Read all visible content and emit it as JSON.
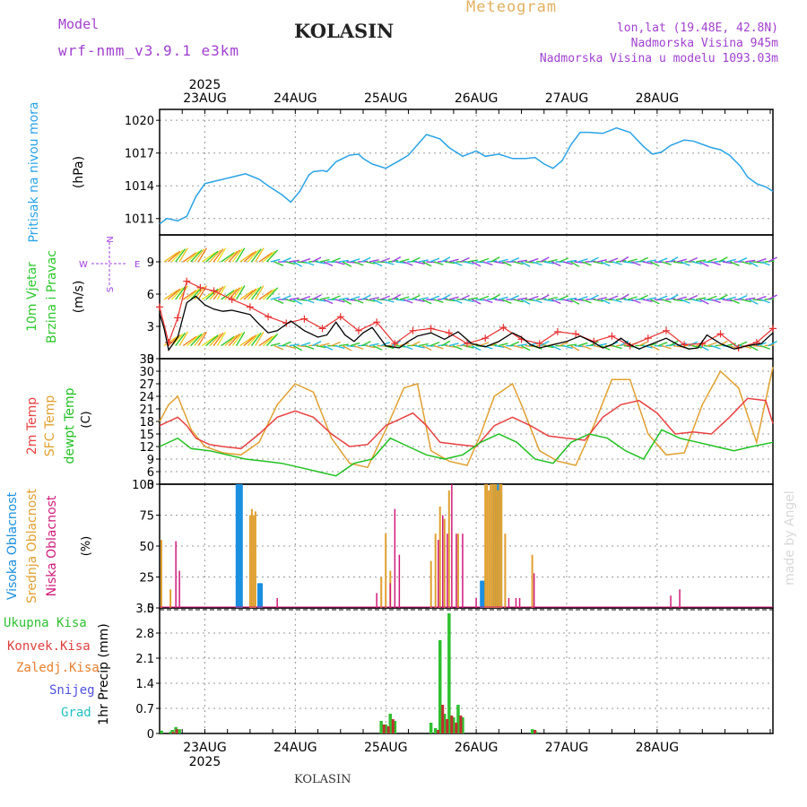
{
  "header": {
    "model_label": "Model",
    "model_name": "wrf-nmm_v3.9.1 e3km",
    "station": "KOLASIN",
    "product": "Meteogram",
    "lonlat": "lon,lat (19.48E, 42.8N)",
    "elevation": "Nadmorska Visina 945m",
    "model_elevation": "Nadmorska Visina u modelu 1093.03m",
    "year": "2025",
    "footer_station": "KOLASIN",
    "watermark": "made by Angel"
  },
  "colors": {
    "pressure": "#29a3e6",
    "wind_green": "#2ec82e",
    "wind_purple": "#a040e0",
    "temp2m": "#e84040",
    "sfc": "#e0a030",
    "dewpt": "#20c020",
    "high": "#1b8fe0",
    "mid": "#e0a030",
    "low": "#d01a7a",
    "precip_total": "#30c030",
    "precip_conv": "#c03030",
    "precip_frozen": "#e88030",
    "snow": "#5050e0",
    "hail": "#20c0c0",
    "title": "#222222",
    "meteogram": "#e0b060",
    "info": "#a040d0"
  },
  "chart_data": [
    {
      "type": "line",
      "panel": "pressure",
      "ylabel": "(hPa)",
      "side_label": "Pritisak na nivou mora",
      "ylim": [
        1009.5,
        1021
      ],
      "yticks": [
        1011,
        1014,
        1017,
        1020
      ],
      "series": [
        {
          "name": "Pritisak na nivou mora",
          "x": [
            0,
            0.08,
            0.2,
            0.3,
            0.4,
            0.5,
            0.65,
            0.8,
            0.95,
            1.1,
            1.2,
            1.35,
            1.45,
            1.55,
            1.65,
            1.7,
            1.8,
            1.85,
            1.95,
            2.1,
            2.2,
            2.25,
            2.35,
            2.5,
            2.65,
            2.75,
            2.95,
            3.1,
            3.2,
            3.35,
            3.5,
            3.6,
            3.75,
            3.9,
            4.05,
            4.15,
            4.25,
            4.35,
            4.45,
            4.55,
            4.65,
            4.75,
            4.9,
            5.05,
            5.2,
            5.35,
            5.45,
            5.55,
            5.65,
            5.8,
            5.9,
            6.0,
            6.1,
            6.2,
            6.3,
            6.42,
            6.5,
            6.6,
            6.7,
            6.78
          ],
          "values": [
            1010.5,
            1011.0,
            1010.8,
            1011.2,
            1013.0,
            1014.2,
            1014.5,
            1014.8,
            1015.1,
            1014.6,
            1014.0,
            1013.2,
            1012.5,
            1013.5,
            1015.0,
            1015.3,
            1015.4,
            1015.3,
            1016.2,
            1016.8,
            1016.9,
            1016.5,
            1016.0,
            1015.6,
            1016.3,
            1016.8,
            1018.7,
            1018.3,
            1017.5,
            1016.7,
            1017.2,
            1016.7,
            1016.9,
            1016.5,
            1016.5,
            1016.6,
            1016.0,
            1015.6,
            1016.3,
            1017.8,
            1018.9,
            1018.9,
            1018.8,
            1019.3,
            1018.9,
            1017.6,
            1016.9,
            1017.1,
            1017.7,
            1018.2,
            1018.1,
            1017.8,
            1017.5,
            1017.3,
            1016.8,
            1015.8,
            1014.8,
            1014.2,
            1013.9,
            1013.5
          ]
        }
      ]
    },
    {
      "type": "line",
      "panel": "wind",
      "ylabel": "(m/s)",
      "side_label_1": "10m Vjetar",
      "side_label_2": "Brzina i Pravac",
      "compass": {
        "n": "N",
        "s": "S",
        "w": "W",
        "e": "E"
      },
      "ylim": [
        0,
        11.5
      ],
      "yticks": [
        0,
        3,
        6,
        9
      ],
      "series": [
        {
          "name": "Brzina vjetra",
          "x": [
            0,
            0.05,
            0.1,
            0.2,
            0.3,
            0.4,
            0.5,
            0.6,
            0.7,
            0.8,
            0.9,
            1.0,
            1.1,
            1.2,
            1.3,
            1.45,
            1.6,
            1.75,
            1.85,
            1.95,
            2.05,
            2.15,
            2.25,
            2.35,
            2.5,
            2.65,
            2.75,
            2.85,
            3.0,
            3.15,
            3.3,
            3.45,
            3.6,
            3.75,
            3.9,
            4.0,
            4.1,
            4.2,
            4.3,
            4.5,
            4.65,
            4.8,
            4.9,
            5.0,
            5.1,
            5.2,
            5.3,
            5.45,
            5.6,
            5.75,
            5.85,
            5.95,
            6.05,
            6.2,
            6.35,
            6.5,
            6.65,
            6.78
          ],
          "values": [
            4.2,
            2.8,
            0.8,
            2.0,
            5.2,
            5.8,
            5.0,
            4.6,
            4.4,
            4.5,
            4.3,
            4.1,
            3.2,
            2.4,
            2.6,
            3.5,
            2.6,
            2.0,
            2.2,
            3.4,
            2.2,
            1.6,
            2.4,
            2.9,
            1.2,
            1.0,
            1.6,
            2.1,
            2.4,
            1.8,
            2.5,
            1.4,
            1.1,
            1.6,
            2.4,
            2.0,
            1.3,
            1.0,
            1.2,
            1.6,
            2.1,
            1.5,
            1.0,
            1.3,
            1.9,
            1.3,
            0.9,
            1.4,
            1.9,
            1.2,
            0.9,
            1.0,
            2.2,
            1.4,
            0.9,
            1.2,
            1.4,
            2.4
          ]
        },
        {
          "name": "Udari vjetra",
          "x": [
            0,
            0.1,
            0.2,
            0.3,
            0.45,
            0.6,
            0.8,
            1.0,
            1.2,
            1.4,
            1.6,
            1.8,
            2.0,
            2.2,
            2.4,
            2.6,
            2.8,
            3.0,
            3.2,
            3.4,
            3.6,
            3.8,
            4.0,
            4.2,
            4.4,
            4.6,
            4.8,
            5.0,
            5.2,
            5.4,
            5.6,
            5.8,
            6.0,
            6.2,
            6.4,
            6.6,
            6.78
          ],
          "values": [
            4.8,
            1.5,
            3.8,
            7.2,
            6.6,
            6.3,
            5.5,
            4.8,
            3.9,
            3.3,
            3.7,
            2.8,
            3.9,
            2.6,
            3.4,
            1.4,
            2.6,
            2.8,
            2.4,
            1.4,
            1.9,
            2.9,
            1.8,
            1.4,
            2.5,
            2.3,
            1.6,
            2.1,
            1.2,
            1.9,
            2.6,
            1.3,
            1.4,
            2.3,
            1.0,
            1.5,
            2.8
          ]
        }
      ],
      "rows": [
        9,
        5.5,
        1.2
      ]
    },
    {
      "type": "line",
      "panel": "temperature",
      "ylabel": "(C)",
      "side_labels": [
        "2m Temp",
        "SFC Temp",
        "dewpt Temp"
      ],
      "ylim": [
        3,
        33
      ],
      "yticks": [
        3,
        6,
        9,
        12,
        15,
        18,
        21,
        24,
        27,
        30,
        33
      ],
      "series": [
        {
          "name": "2m Temp",
          "x": [
            0,
            0.1,
            0.2,
            0.3,
            0.4,
            0.55,
            0.7,
            0.9,
            1.1,
            1.3,
            1.5,
            1.7,
            1.9,
            2.1,
            2.3,
            2.5,
            2.7,
            2.8,
            2.95,
            3.1,
            3.3,
            3.5,
            3.7,
            3.9,
            4.1,
            4.3,
            4.5,
            4.7,
            4.9,
            5.1,
            5.3,
            5.5,
            5.7,
            5.9,
            6.1,
            6.3,
            6.5,
            6.7,
            6.78
          ],
          "values": [
            17,
            18,
            19,
            17,
            14,
            12.5,
            12,
            11.5,
            15,
            19,
            20.5,
            19,
            15,
            12,
            12.5,
            17,
            19,
            20,
            17,
            13,
            12.5,
            12,
            17,
            19,
            17,
            14.5,
            14,
            13.5,
            19,
            22,
            23,
            20,
            15,
            15.5,
            15,
            19,
            23.5,
            23,
            17.5
          ]
        },
        {
          "name": "SFC Temp",
          "x": [
            0,
            0.1,
            0.2,
            0.35,
            0.5,
            0.7,
            0.9,
            1.1,
            1.3,
            1.5,
            1.7,
            1.9,
            2.1,
            2.3,
            2.5,
            2.7,
            2.85,
            3.0,
            3.2,
            3.4,
            3.55,
            3.7,
            3.9,
            4.0,
            4.2,
            4.4,
            4.6,
            4.8,
            5.0,
            5.2,
            5.4,
            5.6,
            5.8,
            6.0,
            6.2,
            6.4,
            6.6,
            6.78
          ],
          "values": [
            18,
            22,
            24,
            16,
            12,
            10.5,
            10,
            13,
            22,
            27,
            25,
            14,
            8,
            7,
            16,
            26,
            27,
            11,
            8.5,
            7.5,
            15,
            24,
            27,
            22,
            11,
            8.5,
            7.5,
            17,
            28,
            28,
            15,
            10,
            10.5,
            22,
            30,
            26,
            13,
            31
          ]
        },
        {
          "name": "dewpt Temp",
          "x": [
            0,
            0.2,
            0.35,
            0.55,
            0.75,
            0.95,
            1.15,
            1.35,
            1.55,
            1.75,
            1.95,
            2.15,
            2.35,
            2.55,
            2.75,
            2.95,
            3.15,
            3.35,
            3.55,
            3.75,
            3.95,
            4.15,
            4.35,
            4.55,
            4.75,
            4.95,
            5.15,
            5.35,
            5.55,
            5.75,
            5.95,
            6.15,
            6.35,
            6.55,
            6.78
          ],
          "values": [
            12,
            14,
            11.5,
            11,
            10,
            9,
            8.5,
            8,
            7,
            6,
            5,
            8,
            9,
            14,
            12,
            10,
            9,
            10,
            13,
            15,
            13,
            9,
            8,
            13,
            15,
            14,
            11,
            9,
            16,
            14,
            13,
            12,
            11,
            12,
            13
          ]
        }
      ]
    },
    {
      "type": "bar",
      "panel": "clouds",
      "ylabel": "(%)",
      "side_labels": [
        "Visoka Oblacnost",
        "Srednja Oblacnost",
        "Niska Oblacnost"
      ],
      "ylim": [
        0,
        100
      ],
      "yticks": [
        0,
        25,
        50,
        75,
        100
      ],
      "series": [
        {
          "name": "Visoka Oblacnost",
          "x": [
            0.86,
            0.88,
            0.9,
            1.1,
            1.12,
            3.56,
            3.58,
            3.69,
            3.71,
            3.73,
            3.75
          ],
          "values": [
            100,
            100,
            100,
            20,
            20,
            22,
            22,
            100,
            100,
            100,
            100
          ]
        },
        {
          "name": "Srednja Oblacnost",
          "x": [
            0.02,
            0.12,
            1.0,
            1.02,
            1.04,
            1.06,
            2.45,
            2.5,
            2.55,
            3.0,
            3.05,
            3.1,
            3.15,
            3.2,
            3.3,
            3.6,
            3.62,
            3.64,
            3.66,
            3.68,
            3.7,
            3.72,
            3.74,
            3.76,
            3.78,
            3.82,
            4.12
          ],
          "values": [
            55,
            15,
            75,
            80,
            75,
            78,
            25,
            60,
            30,
            38,
            60,
            82,
            72,
            95,
            60,
            100,
            100,
            95,
            100,
            100,
            100,
            100,
            95,
            100,
            100,
            60,
            43
          ]
        },
        {
          "name": "Niska Oblacnost",
          "x": [
            0.18,
            0.22,
            1.3,
            2.4,
            2.55,
            2.6,
            2.65,
            3.5,
            3.08,
            3.13,
            3.18,
            3.23,
            3.28,
            3.35,
            3.86,
            3.94,
            3.98,
            4.14,
            5.65,
            5.75
          ],
          "values": [
            54,
            30,
            8,
            12,
            20,
            80,
            43,
            8,
            55,
            75,
            60,
            100,
            60,
            60,
            8,
            8,
            8,
            28,
            10,
            15
          ]
        }
      ]
    },
    {
      "type": "bar",
      "panel": "precip",
      "ylabel": "1hr Precip (mm)",
      "side_labels": [
        "Ukupna Kisa",
        "Konvek.Kisa",
        "Zaledj.Kisa",
        "Snijeg",
        "Grad"
      ],
      "ylim": [
        0,
        3.5
      ],
      "yticks": [
        0,
        0.7,
        1.4,
        2.1,
        2.8,
        3.5
      ],
      "series": [
        {
          "name": "Ukupna Kisa",
          "x": [
            0.02,
            0.12,
            0.14,
            0.18,
            0.22,
            2.45,
            2.5,
            2.55,
            2.6,
            2.65,
            3.0,
            3.05,
            3.1,
            3.15,
            3.2,
            3.25,
            3.3,
            3.35,
            4.12,
            4.16
          ],
          "values": [
            0.08,
            0.05,
            0.1,
            0.18,
            0.12,
            0.35,
            0.25,
            0.55,
            0.35,
            0.0,
            0.3,
            0.15,
            2.6,
            0.55,
            3.35,
            0.45,
            0.8,
            0.45,
            0.12,
            0.06
          ]
        },
        {
          "name": "Konvek.Kisa",
          "x": [
            0.12,
            0.16,
            2.45,
            2.5,
            2.55,
            3.05,
            3.1,
            3.15,
            3.2,
            3.25,
            3.3,
            4.12
          ],
          "values": [
            0.04,
            0.12,
            0.25,
            0.2,
            0.4,
            0.1,
            0.8,
            0.4,
            0.5,
            0.3,
            0.5,
            0.1
          ]
        }
      ]
    }
  ],
  "x_axis": {
    "day_labels": [
      "23AUG",
      "24AUG",
      "25AUG",
      "26AUG",
      "27AUG",
      "28AUG"
    ],
    "day_positions": [
      0.5,
      1.5,
      2.5,
      3.5,
      4.5,
      5.5
    ],
    "range": [
      0,
      6.78
    ]
  }
}
